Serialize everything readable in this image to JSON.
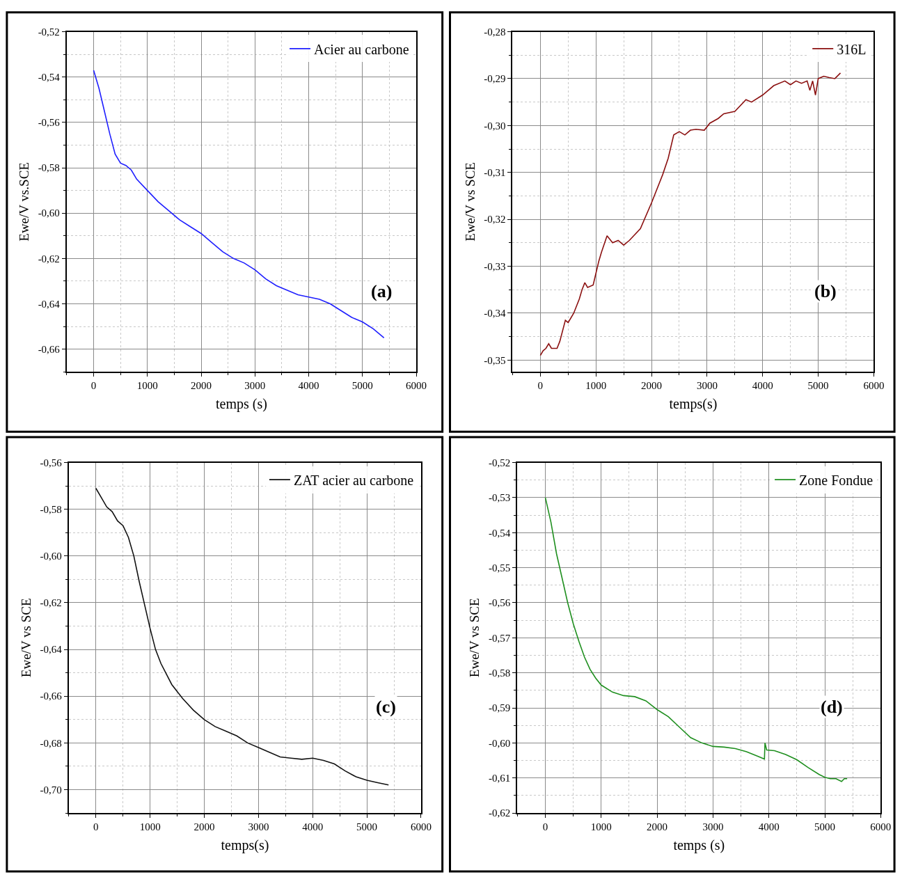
{
  "chart_data": [
    {
      "type": "line",
      "xlabel": "temps (s)",
      "ylabel": "Ewe/V vs.SCE",
      "annotations": [
        "(a)"
      ],
      "legend": "top right",
      "grid": true,
      "xlim": [
        -500,
        6000
      ],
      "xticks": [
        0,
        1000,
        2000,
        3000,
        4000,
        5000,
        6000
      ],
      "ylim": [
        -0.67,
        -0.52
      ],
      "yticks": [
        {
          "value": -0.52,
          "label": "-0,52"
        },
        {
          "value": -0.54,
          "label": "-0,54"
        },
        {
          "value": -0.56,
          "label": "-0,56"
        },
        {
          "value": -0.58,
          "label": "-0,58"
        },
        {
          "value": -0.6,
          "label": "-0,60"
        },
        {
          "value": -0.62,
          "label": "-0,62"
        },
        {
          "value": -0.64,
          "label": "-0,64"
        },
        {
          "value": -0.66,
          "label": "-0,66"
        }
      ],
      "series": [
        {
          "name": "Acier au carbone",
          "color": "#1f1fff",
          "x": [
            0,
            100,
            200,
            300,
            400,
            500,
            600,
            700,
            800,
            1000,
            1200,
            1400,
            1600,
            1800,
            2000,
            2200,
            2400,
            2600,
            2800,
            3000,
            3200,
            3400,
            3600,
            3800,
            4000,
            4200,
            4400,
            4600,
            4800,
            5000,
            5200,
            5400
          ],
          "values": [
            -0.537,
            -0.545,
            -0.555,
            -0.565,
            -0.574,
            -0.578,
            -0.579,
            -0.581,
            -0.585,
            -0.59,
            -0.595,
            -0.599,
            -0.603,
            -0.606,
            -0.609,
            -0.613,
            -0.617,
            -0.62,
            -0.622,
            -0.625,
            -0.629,
            -0.632,
            -0.634,
            -0.636,
            -0.637,
            -0.638,
            -0.64,
            -0.643,
            -0.646,
            -0.648,
            -0.651,
            -0.655
          ]
        }
      ]
    },
    {
      "type": "line",
      "xlabel": "temps(s)",
      "ylabel": "Ewe/V vs SCE",
      "annotations": [
        "(b)"
      ],
      "legend": "top right",
      "grid": true,
      "xlim": [
        -500,
        6000
      ],
      "xticks": [
        0,
        1000,
        2000,
        3000,
        4000,
        5000,
        6000
      ],
      "ylim": [
        -0.3525,
        -0.28
      ],
      "yticks": [
        {
          "value": -0.28,
          "label": "-0,28"
        },
        {
          "value": -0.29,
          "label": "-0,29"
        },
        {
          "value": -0.3,
          "label": "-0,30"
        },
        {
          "value": -0.31,
          "label": "-0,31"
        },
        {
          "value": -0.32,
          "label": "-0,32"
        },
        {
          "value": -0.33,
          "label": "-0,33"
        },
        {
          "value": -0.34,
          "label": "-0,34"
        },
        {
          "value": -0.35,
          "label": "-0,35"
        }
      ],
      "series": [
        {
          "name": "316L",
          "color": "#8b1010",
          "x": [
            0,
            50,
            100,
            150,
            200,
            300,
            350,
            450,
            500,
            600,
            700,
            750,
            800,
            850,
            950,
            1050,
            1100,
            1200,
            1300,
            1400,
            1500,
            1600,
            1800,
            2000,
            2200,
            2300,
            2400,
            2500,
            2600,
            2700,
            2800,
            2950,
            3050,
            3200,
            3300,
            3500,
            3700,
            3800,
            4000,
            4200,
            4400,
            4500,
            4600,
            4700,
            4800,
            4850,
            4900,
            4950,
            5000,
            5100,
            5200,
            5300,
            5400
          ],
          "values": [
            -0.349,
            -0.348,
            -0.3475,
            -0.3465,
            -0.3475,
            -0.3475,
            -0.346,
            -0.3415,
            -0.342,
            -0.34,
            -0.337,
            -0.335,
            -0.3335,
            -0.3345,
            -0.334,
            -0.329,
            -0.327,
            -0.3235,
            -0.325,
            -0.3245,
            -0.3255,
            -0.3245,
            -0.322,
            -0.3165,
            -0.3105,
            -0.307,
            -0.302,
            -0.3013,
            -0.302,
            -0.301,
            -0.3008,
            -0.301,
            -0.2995,
            -0.2985,
            -0.2975,
            -0.297,
            -0.2945,
            -0.295,
            -0.2935,
            -0.2915,
            -0.2905,
            -0.2913,
            -0.2905,
            -0.291,
            -0.2905,
            -0.2925,
            -0.2905,
            -0.2935,
            -0.29,
            -0.2895,
            -0.2898,
            -0.29,
            -0.2888
          ]
        }
      ]
    },
    {
      "type": "line",
      "xlabel": "temps(s)",
      "ylabel": "Ewe/V vs SCE",
      "annotations": [
        "(c)"
      ],
      "legend": "top right",
      "grid": true,
      "xlim": [
        -500,
        6000
      ],
      "xticks": [
        0,
        1000,
        2000,
        3000,
        4000,
        5000,
        6000
      ],
      "ylim": [
        -0.71,
        -0.56
      ],
      "yticks": [
        {
          "value": -0.56,
          "label": "-0,56"
        },
        {
          "value": -0.58,
          "label": "-0,58"
        },
        {
          "value": -0.6,
          "label": "-0,60"
        },
        {
          "value": -0.62,
          "label": "-0,62"
        },
        {
          "value": -0.64,
          "label": "-0,64"
        },
        {
          "value": -0.66,
          "label": "-0,66"
        },
        {
          "value": -0.68,
          "label": "-0,68"
        },
        {
          "value": -0.7,
          "label": "-0,70"
        }
      ],
      "series": [
        {
          "name": "ZAT acier au carbone",
          "color": "#111111",
          "x": [
            0,
            100,
            200,
            300,
            400,
            500,
            600,
            700,
            800,
            900,
            1000,
            1100,
            1200,
            1400,
            1600,
            1800,
            2000,
            2200,
            2400,
            2600,
            2800,
            3000,
            3200,
            3400,
            3600,
            3800,
            4000,
            4200,
            4400,
            4600,
            4800,
            5000,
            5200,
            5400
          ],
          "values": [
            -0.571,
            -0.575,
            -0.579,
            -0.581,
            -0.585,
            -0.587,
            -0.592,
            -0.6,
            -0.611,
            -0.621,
            -0.631,
            -0.64,
            -0.646,
            -0.655,
            -0.661,
            -0.666,
            -0.67,
            -0.673,
            -0.675,
            -0.677,
            -0.68,
            -0.682,
            -0.684,
            -0.686,
            -0.6865,
            -0.687,
            -0.6865,
            -0.6875,
            -0.689,
            -0.692,
            -0.6945,
            -0.696,
            -0.697,
            -0.698
          ]
        }
      ]
    },
    {
      "type": "line",
      "xlabel": "temps (s)",
      "ylabel": "Ewe/V vs SCE",
      "annotations": [
        "(d)"
      ],
      "legend": "top right",
      "grid": true,
      "xlim": [
        -500,
        6000
      ],
      "xticks": [
        0,
        1000,
        2000,
        3000,
        4000,
        5000,
        6000
      ],
      "ylim": [
        -0.62,
        -0.52
      ],
      "yticks": [
        {
          "value": -0.52,
          "label": "-0,52"
        },
        {
          "value": -0.53,
          "label": "-0,53"
        },
        {
          "value": -0.54,
          "label": "-0,54"
        },
        {
          "value": -0.55,
          "label": "-0,55"
        },
        {
          "value": -0.56,
          "label": "-0,56"
        },
        {
          "value": -0.57,
          "label": "-0,57"
        },
        {
          "value": -0.58,
          "label": "-0,58"
        },
        {
          "value": -0.59,
          "label": "-0,59"
        },
        {
          "value": -0.6,
          "label": "-0,60"
        },
        {
          "value": -0.61,
          "label": "-0,61"
        },
        {
          "value": -0.62,
          "label": "-0,62"
        }
      ],
      "series": [
        {
          "name": "Zone Fondue",
          "color": "#1f8f1f",
          "x": [
            0,
            100,
            200,
            300,
            400,
            500,
            600,
            700,
            800,
            900,
            1000,
            1200,
            1400,
            1600,
            1800,
            2000,
            2200,
            2400,
            2600,
            2800,
            3000,
            3200,
            3400,
            3600,
            3800,
            3920,
            3930,
            3960,
            4100,
            4300,
            4500,
            4700,
            4900,
            5000,
            5100,
            5200,
            5300,
            5350,
            5400
          ],
          "values": [
            -0.53,
            -0.537,
            -0.546,
            -0.553,
            -0.56,
            -0.566,
            -0.571,
            -0.5755,
            -0.579,
            -0.5815,
            -0.5835,
            -0.5855,
            -0.5865,
            -0.5868,
            -0.588,
            -0.5905,
            -0.5925,
            -0.5955,
            -0.5985,
            -0.6,
            -0.601,
            -0.6012,
            -0.6016,
            -0.6025,
            -0.6038,
            -0.6046,
            -0.6,
            -0.602,
            -0.6022,
            -0.6033,
            -0.6048,
            -0.607,
            -0.609,
            -0.6098,
            -0.6102,
            -0.6102,
            -0.611,
            -0.6102,
            -0.6102
          ]
        }
      ]
    }
  ]
}
